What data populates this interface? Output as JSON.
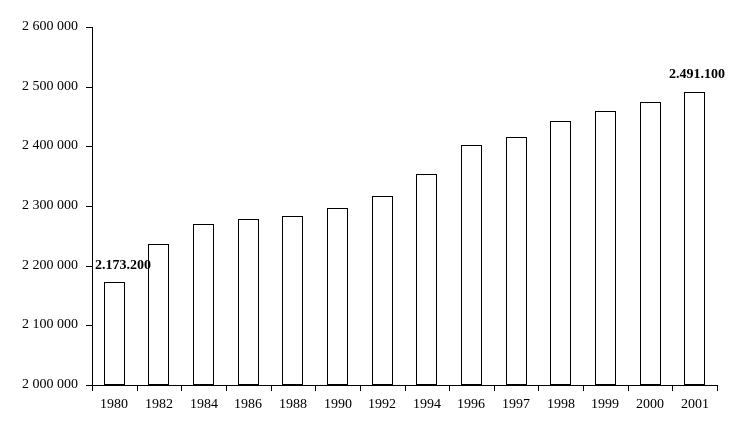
{
  "chart_data": {
    "type": "bar",
    "title": "",
    "xlabel": "",
    "ylabel": "",
    "categories": [
      "1980",
      "1982",
      "1984",
      "1986",
      "1988",
      "1990",
      "1992",
      "1994",
      "1996",
      "1997",
      "1998",
      "1999",
      "2000",
      "2001"
    ],
    "values": [
      2173200,
      2236000,
      2270000,
      2278000,
      2283000,
      2296000,
      2317000,
      2353000,
      2403000,
      2415000,
      2442000,
      2459000,
      2474000,
      2491100
    ],
    "ylim": [
      2000000,
      2600000
    ],
    "ytick_step": 100000,
    "ytick_labels": [
      "2 000 000",
      "2 100 000",
      "2 200 000",
      "2 300 000",
      "2 400 000",
      "2 500 000",
      "2 600 000"
    ],
    "data_labels": {
      "first": "2.173.200",
      "last": "2.491.100"
    },
    "legend": false,
    "grid": false,
    "bar_fill": "#ffffff",
    "bar_border": "#000000",
    "axis_color": "#000000",
    "background": "#ffffff"
  }
}
